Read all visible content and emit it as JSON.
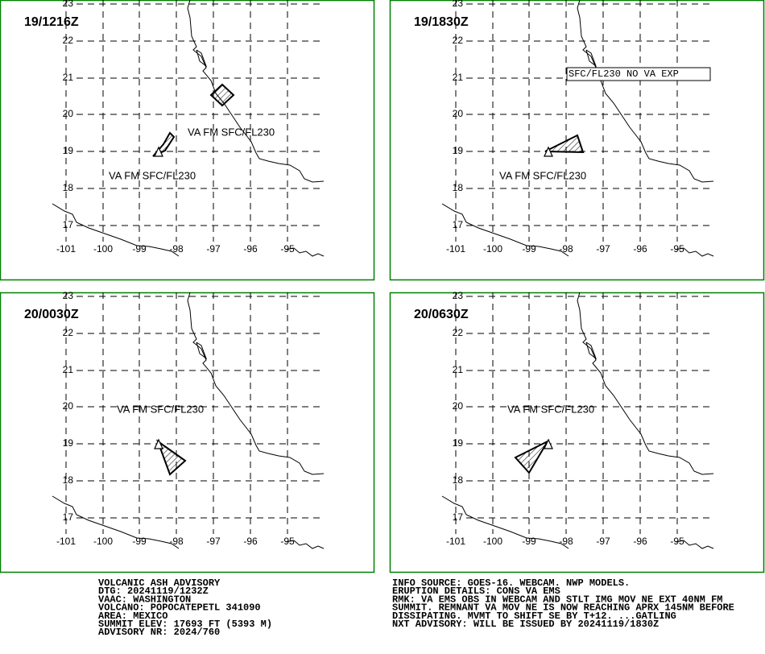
{
  "panels": [
    {
      "title": "19/1216Z",
      "annotations": [
        "VA FM SFC/FL230",
        "VA FM SFC/FL230"
      ]
    },
    {
      "title": "19/1830Z",
      "annotations": [
        "VA FM SFC/FL230",
        "SFC/FL230 NO VA EXP"
      ]
    },
    {
      "title": "20/0030Z",
      "annotations": [
        "VA FM SFC/FL230"
      ]
    },
    {
      "title": "20/0630Z",
      "annotations": [
        "VA FM SFC/FL230"
      ]
    }
  ],
  "map": {
    "lat_labels": [
      "23",
      "22",
      "21",
      "20",
      "19",
      "18",
      "17"
    ],
    "lon_labels": [
      "-101",
      "-100",
      "-99",
      "-98",
      "-97",
      "-96",
      "-95"
    ]
  },
  "advisory_left": [
    "VOLCANIC ASH ADVISORY",
    "DTG: 20241119/1232Z",
    "VAAC: WASHINGTON",
    "VOLCANO: POPOCATEPETL 341090",
    "AREA: MEXICO",
    "SUMMIT ELEV: 17693 FT (5393 M)",
    "ADVISORY NR: 2024/760"
  ],
  "advisory_right": [
    "INFO SOURCE: GOES-16. WEBCAM. NWP MODELS.",
    "ERUPTION DETAILS: CONS VA EMS",
    "RMK: VA EMS OBS IN WEBCAM AND STLT IMG MOV NE EXT 40NM FM",
    "SUMMIT. REMNANT VA MOV NE IS NOW REACHING APRX 145NM BEFORE",
    "DISSIPATING. MVMT TO SHIFT SE BY T+12. ...GATLING",
    "NXT ADVISORY: WILL BE ISSUED BY 20241119/1830Z"
  ]
}
